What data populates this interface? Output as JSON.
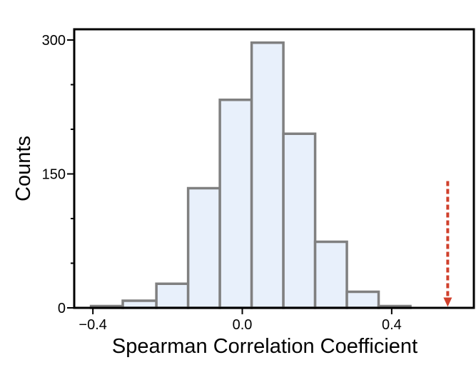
{
  "chart_data": {
    "type": "bar",
    "title": "",
    "xlabel": "Spearman Correlation Coefficient",
    "ylabel": "Counts",
    "xlim": [
      -0.45,
      0.62
    ],
    "ylim": [
      0,
      300
    ],
    "xticks": [
      {
        "value": -0.4,
        "label": "−0.4"
      },
      {
        "value": 0.0,
        "label": "0.0"
      },
      {
        "value": 0.4,
        "label": "0.4"
      }
    ],
    "yticks": [
      {
        "value": 0,
        "label": "0"
      },
      {
        "value": 150,
        "label": "150"
      },
      {
        "value": 300,
        "label": "300"
      }
    ],
    "yminor": [
      50,
      100,
      200,
      250
    ],
    "bins": [
      {
        "x0": -0.405,
        "x1": -0.32,
        "count": 2
      },
      {
        "x0": -0.32,
        "x1": -0.23,
        "count": 8
      },
      {
        "x0": -0.23,
        "x1": -0.145,
        "count": 27
      },
      {
        "x0": -0.145,
        "x1": -0.06,
        "count": 134
      },
      {
        "x0": -0.06,
        "x1": 0.025,
        "count": 233
      },
      {
        "x0": 0.025,
        "x1": 0.11,
        "count": 297
      },
      {
        "x0": 0.11,
        "x1": 0.195,
        "count": 195
      },
      {
        "x0": 0.195,
        "x1": 0.28,
        "count": 74
      },
      {
        "x0": 0.28,
        "x1": 0.365,
        "count": 18
      },
      {
        "x0": 0.365,
        "x1": 0.45,
        "count": 2
      }
    ],
    "marker": {
      "x": 0.55,
      "y_top": 142,
      "y_bottom": 2,
      "style": "dashed-arrow-down"
    },
    "colors": {
      "bar_fill": "#e8f0fb",
      "bar_edge": "#808080",
      "axis": "#000000",
      "marker": "#d0402c"
    }
  }
}
